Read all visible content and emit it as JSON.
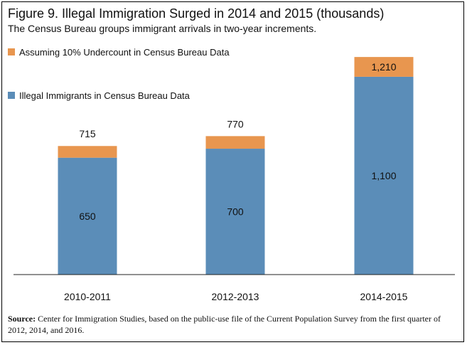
{
  "title": "Figure 9. Illegal Immigration Surged in 2014 and 2015 (thousands)",
  "subtitle": "The Census Bureau groups immigrant arrivals in two-year increments.",
  "source": {
    "label": "Source:",
    "text": " Center for Immigration Studies, based on the public-use file of the Current Population Survey from the first quarter of 2012, 2014, and 2016."
  },
  "colors": {
    "base": "#5b8db8",
    "undercount": "#e8964f"
  },
  "chart_data": {
    "type": "bar",
    "stacked": true,
    "categories": [
      "2010-2011",
      "2012-2013",
      "2014-2015"
    ],
    "series": [
      {
        "name": "Illegal Immigrants in Census Bureau Data",
        "values": [
          650,
          700,
          1100
        ]
      },
      {
        "name": "Assuming 10% Undercount in Census Bureau Data",
        "values": [
          65,
          70,
          110
        ]
      }
    ],
    "base_labels": [
      "650",
      "700",
      "1,100"
    ],
    "total_labels": [
      "715",
      "770",
      "1,210"
    ],
    "ylim": [
      0,
      1300
    ],
    "grid": false,
    "legend_position": "top-left"
  }
}
